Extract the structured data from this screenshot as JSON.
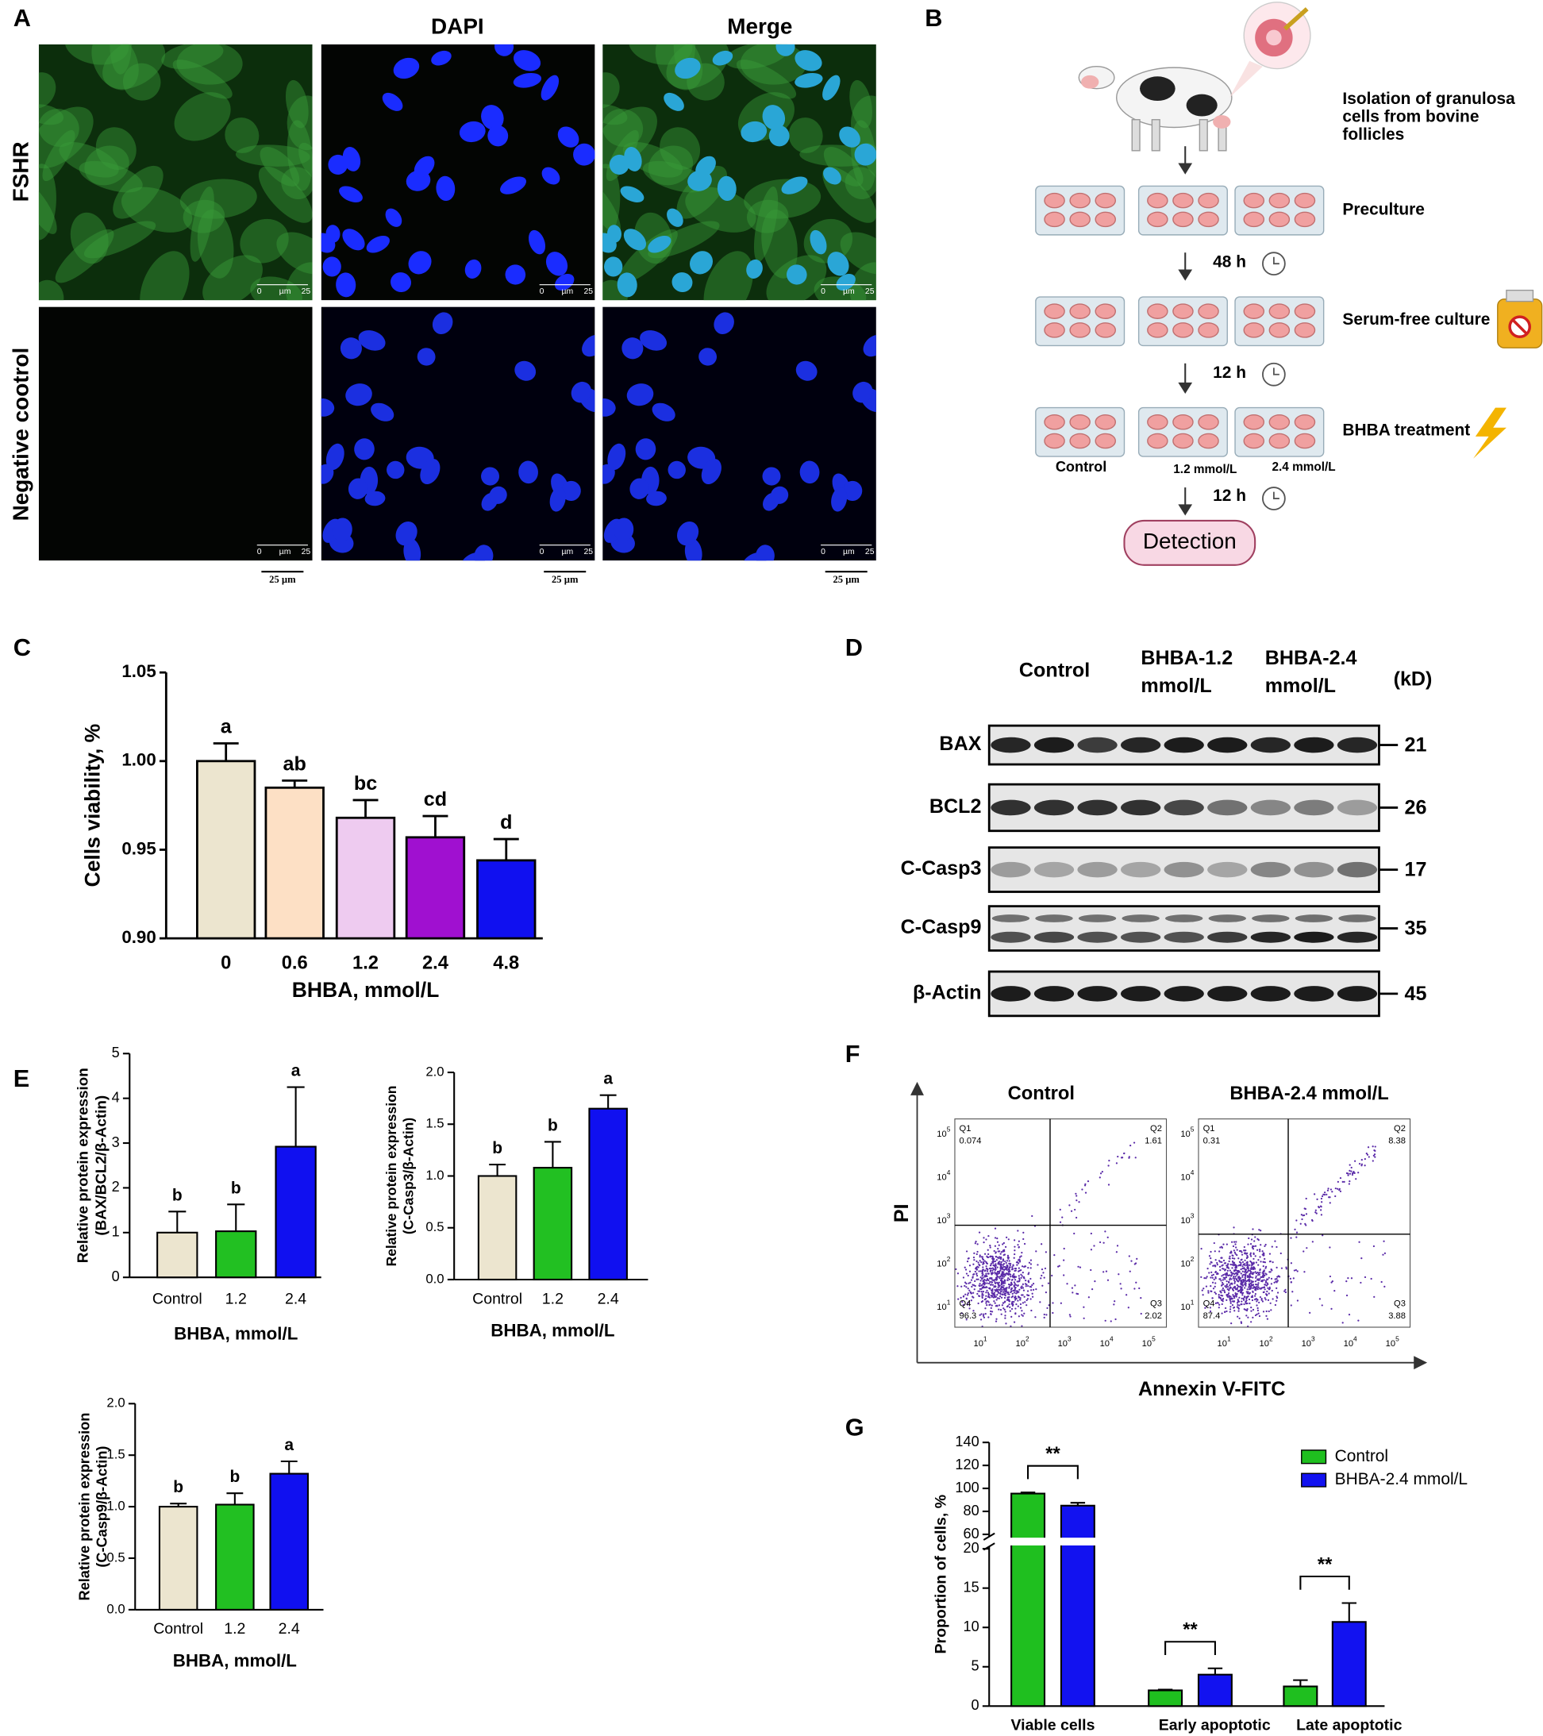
{
  "panel_labels": [
    "A",
    "B",
    "C",
    "D",
    "E",
    "F",
    "G"
  ],
  "microscopy": {
    "columns": [
      "DAPI",
      "Merge"
    ],
    "rows": [
      "FSHR",
      "Negative cootrol"
    ],
    "scale_bar": "25 µm",
    "inset": [
      "0",
      "µm",
      "25"
    ]
  },
  "workflow": {
    "isolation": [
      "Isolation of granulosa",
      "cells from bovine",
      "follicles"
    ],
    "steps": [
      "Preculture",
      "Serum-free culture",
      "BHBA treatment"
    ],
    "times": [
      "48 h",
      "12 h",
      "12 h"
    ],
    "groups": [
      "Control",
      "1.2 mmol/L",
      "2.4 mmol/L"
    ],
    "final": "Detection"
  },
  "western_blot": {
    "lanes": [
      [
        "Control"
      ],
      [
        "BHBA-1.2",
        "mmol/L"
      ],
      [
        "BHBA-2.4",
        "mmol/L"
      ]
    ],
    "unit": "(kD)",
    "proteins": [
      {
        "name": "BAX",
        "kd": 21
      },
      {
        "name": "BCL2",
        "kd": 26
      },
      {
        "name": "C-Casp3",
        "kd": 17
      },
      {
        "name": "C-Casp9",
        "kd": 35
      },
      {
        "name": "β-Actin",
        "kd": 45
      }
    ]
  },
  "flow": {
    "x_label": "Annexin V-FITC",
    "y_label": "PI",
    "tick_base": 10,
    "tick_exponents": [
      1,
      2,
      3,
      4,
      5
    ],
    "plots": [
      {
        "title": "Control",
        "quadrants": [
          {
            "name": "Q1",
            "value": 0.074
          },
          {
            "name": "Q2",
            "value": 1.61
          },
          {
            "name": "Q3",
            "value": 2.02
          },
          {
            "name": "Q4",
            "value": 96.3
          }
        ]
      },
      {
        "title": "BHBA-2.4 mmol/L",
        "quadrants": [
          {
            "name": "Q1",
            "value": 0.31
          },
          {
            "name": "Q2",
            "value": 8.38
          },
          {
            "name": "Q3",
            "value": 3.88
          },
          {
            "name": "Q4",
            "value": 87.4
          }
        ]
      }
    ]
  },
  "chart_data": [
    {
      "type": "bar",
      "x_label": "BHBA, mmol/L",
      "y_label": [
        "Cells viability, %"
      ],
      "categories": [
        "0",
        "0.6",
        "1.2",
        "2.4",
        "4.8"
      ],
      "values": [
        1.0,
        0.985,
        0.968,
        0.957,
        0.944
      ],
      "errors": [
        0.01,
        0.004,
        0.01,
        0.012,
        0.012
      ],
      "annotations": [
        "a",
        "ab",
        "bc",
        "cd",
        "d"
      ],
      "colors": [
        "#ece5cf",
        "#fde0c5",
        "#eecbf0",
        "#a010d0",
        "#1010f0"
      ],
      "ylim": [
        0.9,
        1.05
      ],
      "yticks": [
        {
          "value": 0.9,
          "label": "0.90"
        },
        {
          "value": 0.95,
          "label": "0.95"
        },
        {
          "value": 1.0,
          "label": "1.00"
        },
        {
          "value": 1.05,
          "label": "1.05"
        }
      ]
    },
    {
      "type": "bar",
      "x_label": "BHBA, mmol/L",
      "y_label": [
        "Relative protein expression",
        "(BAX/BCL2/β-Actin)"
      ],
      "categories": [
        "Control",
        "1.2",
        "2.4"
      ],
      "values": [
        1.0,
        1.03,
        2.92
      ],
      "errors": [
        0.47,
        0.6,
        1.33
      ],
      "annotations": [
        "b",
        "b",
        "a"
      ],
      "colors": [
        "#ece5cf",
        "#22c022",
        "#1010f0"
      ],
      "ylim": [
        0,
        5
      ],
      "yticks": [
        0,
        1,
        2,
        3,
        4,
        5
      ]
    },
    {
      "type": "bar",
      "x_label": "BHBA, mmol/L",
      "y_label": [
        "Relative protein expression",
        "(C-Casp3/β-Actin)"
      ],
      "categories": [
        "Control",
        "1.2",
        "2.4"
      ],
      "values": [
        1.0,
        1.08,
        1.65
      ],
      "errors": [
        0.11,
        0.25,
        0.13
      ],
      "annotations": [
        "b",
        "b",
        "a"
      ],
      "colors": [
        "#ece5cf",
        "#22c022",
        "#1010f0"
      ],
      "ylim": [
        0,
        2
      ],
      "yticks": [
        {
          "value": 0,
          "label": "0.0"
        },
        0.5,
        {
          "value": 1,
          "label": "1.0"
        },
        1.5,
        {
          "value": 2,
          "label": "2.0"
        }
      ]
    },
    {
      "type": "bar",
      "x_label": "BHBA, mmol/L",
      "y_label": [
        "Relative protein expression",
        "(C-Casp9/β-Actin)"
      ],
      "categories": [
        "Control",
        "1.2",
        "2.4"
      ],
      "values": [
        1.0,
        1.02,
        1.32
      ],
      "errors": [
        0.03,
        0.11,
        0.12
      ],
      "annotations": [
        "b",
        "b",
        "a"
      ],
      "colors": [
        "#ece5cf",
        "#22c022",
        "#1010f0"
      ],
      "ylim": [
        0,
        2
      ],
      "yticks": [
        {
          "value": 0,
          "label": "0.0"
        },
        0.5,
        {
          "value": 1,
          "label": "1.0"
        },
        1.5,
        {
          "value": 2,
          "label": "2.0"
        }
      ]
    },
    {
      "type": "bar",
      "y_label": [
        "Proportion of cells, %"
      ],
      "categories": [
        "Viable cells",
        "Early apoptotic",
        "Late apoptotic"
      ],
      "series": [
        {
          "name": "Control",
          "color": "#1fbf1f",
          "values": [
            95.5,
            2.0,
            2.5
          ],
          "errors": [
            1.0,
            0.1,
            0.8
          ]
        },
        {
          "name": "BHBA-2.4 mmol/L",
          "color": "#1212f0",
          "values": [
            85.0,
            4.0,
            10.7
          ],
          "errors": [
            2.5,
            0.8,
            2.4
          ]
        }
      ],
      "annotations": [
        "**",
        "**",
        "**"
      ],
      "legend": "upper right",
      "ylim": [
        0,
        140
      ],
      "axis_break": [
        20,
        60
      ],
      "yticks": [
        0,
        5,
        10,
        15,
        20,
        60,
        80,
        100,
        120,
        140
      ]
    }
  ]
}
